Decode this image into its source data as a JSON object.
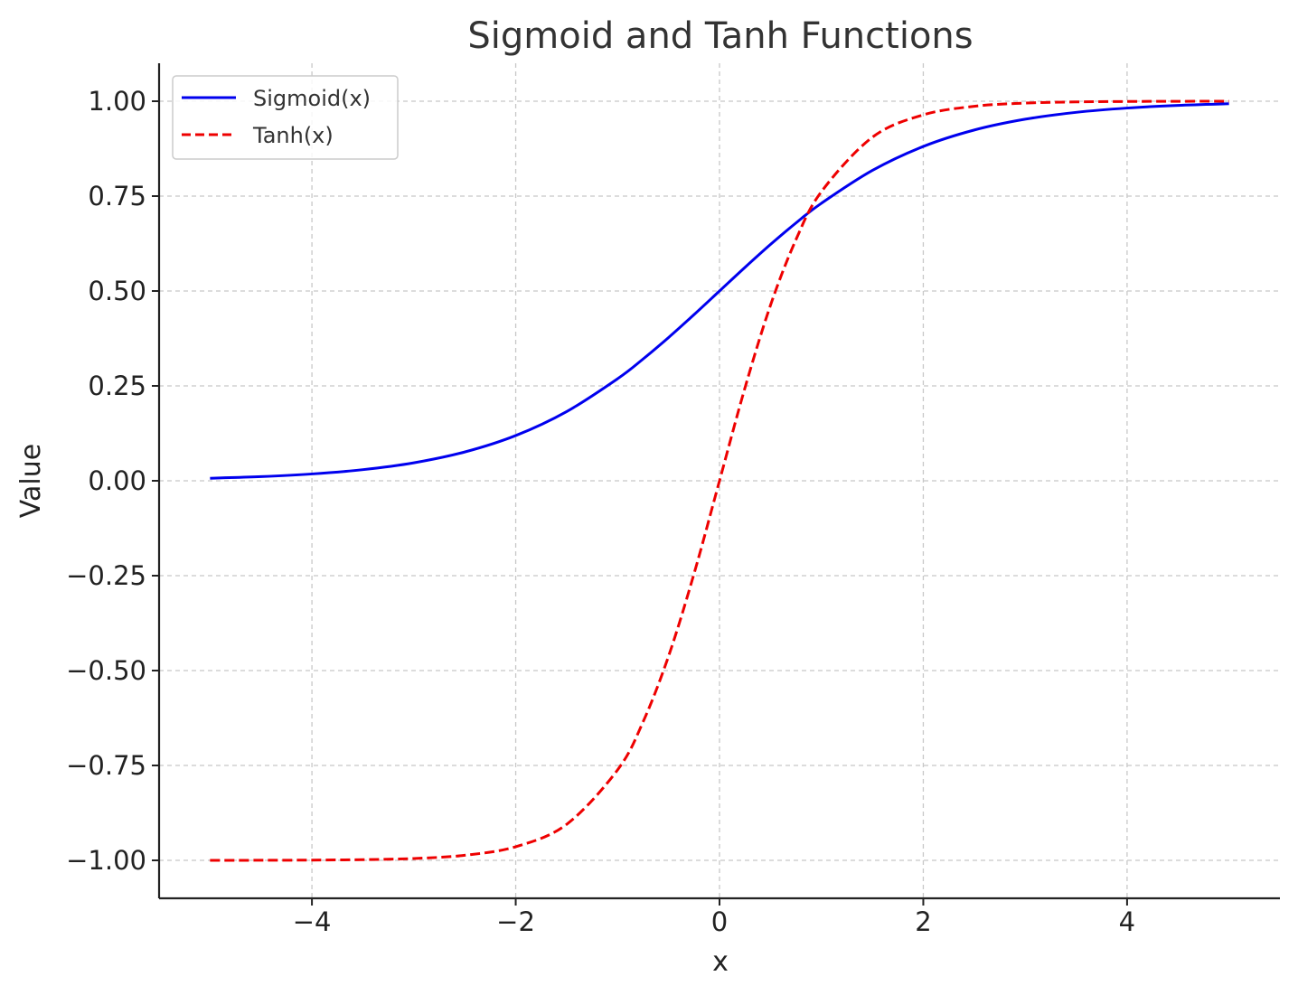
{
  "chart_data": {
    "type": "line",
    "title": "Sigmoid and Tanh Functions",
    "xlabel": "x",
    "ylabel": "Value",
    "xlim": [
      -5.5,
      5.5
    ],
    "ylim": [
      -1.1,
      1.1
    ],
    "xticks": [
      -4,
      -2,
      0,
      2,
      4
    ],
    "xtick_labels": [
      "−4",
      "−2",
      "0",
      "2",
      "4"
    ],
    "yticks": [
      -1.0,
      -0.75,
      -0.5,
      -0.25,
      0.0,
      0.25,
      0.5,
      0.75,
      1.0
    ],
    "ytick_labels": [
      "−1.00",
      "−0.75",
      "−0.50",
      "−0.25",
      "0.00",
      "0.25",
      "0.50",
      "0.75",
      "1.00"
    ],
    "grid": true,
    "legend_position": "top-left",
    "x": [
      -5,
      -4.5,
      -4,
      -3.5,
      -3,
      -2.5,
      -2,
      -1.5,
      -1,
      -0.75,
      -0.5,
      -0.25,
      0,
      0.25,
      0.5,
      0.75,
      1,
      1.5,
      2,
      2.5,
      3,
      3.5,
      4,
      4.5,
      5
    ],
    "series": [
      {
        "name": "Sigmoid(x)",
        "color": "#0000ee",
        "style": "solid",
        "values": [
          0.0067,
          0.011,
          0.018,
          0.0293,
          0.0474,
          0.0759,
          0.1192,
          0.1824,
          0.2689,
          0.3208,
          0.3775,
          0.4378,
          0.5,
          0.5622,
          0.6225,
          0.6792,
          0.7311,
          0.8176,
          0.8808,
          0.9241,
          0.9526,
          0.9707,
          0.982,
          0.989,
          0.9933
        ]
      },
      {
        "name": "Tanh(x)",
        "color": "#ee0000",
        "style": "dashed",
        "values": [
          -0.9999,
          -0.9998,
          -0.9993,
          -0.9982,
          -0.9951,
          -0.9866,
          -0.964,
          -0.9051,
          -0.7616,
          -0.6351,
          -0.4621,
          -0.2449,
          0.0,
          0.2449,
          0.4621,
          0.6351,
          0.7616,
          0.9051,
          0.964,
          0.9866,
          0.9951,
          0.9982,
          0.9993,
          0.9998,
          0.9999
        ]
      }
    ]
  }
}
